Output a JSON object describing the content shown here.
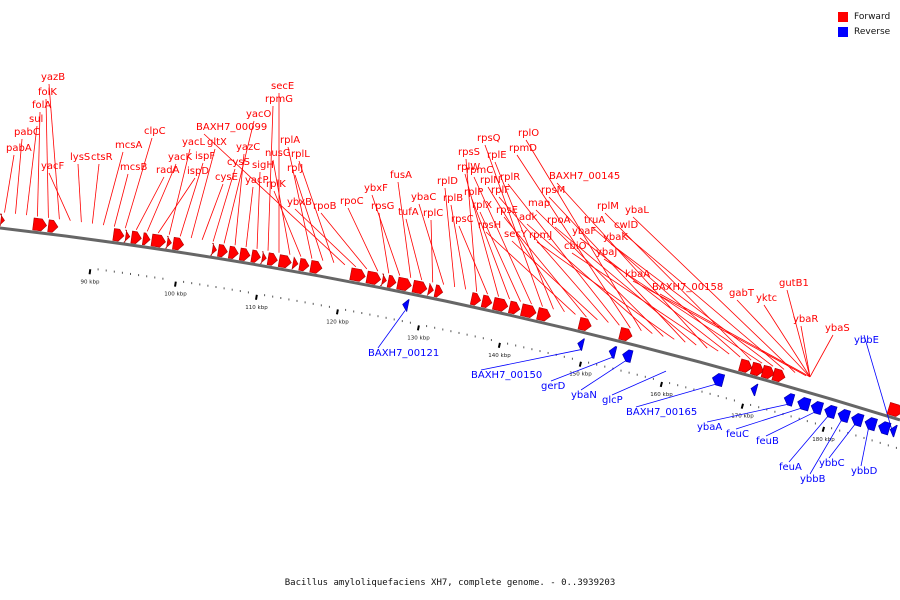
{
  "caption": "Bacillus amyloliquefaciens XH7, complete genome. - 0..3939203",
  "legend": {
    "forward": "Forward",
    "reverse": "Reverse"
  },
  "colors": {
    "forward": "#ff0000",
    "reverse": "#0000ff"
  },
  "ticks": [
    "90 kbp",
    "100 kbp",
    "110 kbp",
    "120 kbp",
    "130 kbp",
    "140 kbp",
    "150 kbp",
    "160 kbp",
    "170 kbp",
    "180 kbp"
  ],
  "forward_labels": [
    "pabA",
    "pabC",
    "sul",
    "folA",
    "folK",
    "yazB",
    "yacF",
    "lysS",
    "ctsR",
    "mcsA",
    "mcsB",
    "clpC",
    "radA",
    "yacK",
    "ispD",
    "yacL",
    "ispF",
    "gltX",
    "cysE",
    "cysS",
    "yacO",
    "yazC",
    "yacP",
    "sigH",
    "rpmG",
    "secE",
    "nusG",
    "rplK",
    "rplA",
    "rplJ",
    "rplL",
    "BAXH7_00099",
    "ybxB",
    "rpoB",
    "rpoC",
    "rpsG",
    "ybxF",
    "fusA",
    "tufA",
    "rplC",
    "ybaC",
    "rplD",
    "rplB",
    "rpsS",
    "rpsC",
    "rplW",
    "rplP",
    "rplX",
    "rpmC",
    "rpsQ",
    "rplE",
    "rplN",
    "rpsH",
    "rpsE",
    "secY",
    "rplF",
    "rplR",
    "rpmD",
    "rplO",
    "adk",
    "map",
    "rpmJ",
    "rpsM",
    "rpoA",
    "BAXH7_00145",
    "cbiO",
    "ybaF",
    "truA",
    "rplM",
    "ybaJ",
    "ybaK",
    "cwlD",
    "ybaL",
    "kbaA",
    "BAXH7_00158",
    "gabT",
    "yktc",
    "gutB1",
    "ybaR",
    "ybaS"
  ],
  "reverse_labels": [
    "BAXH7_00121",
    "BAXH7_00150",
    "gerD",
    "ybaN",
    "glcP",
    "BAXH7_00165",
    "ybaA",
    "feuC",
    "feuB",
    "feuA",
    "ybbB",
    "ybbC",
    "ybbD",
    "ybbE"
  ]
}
